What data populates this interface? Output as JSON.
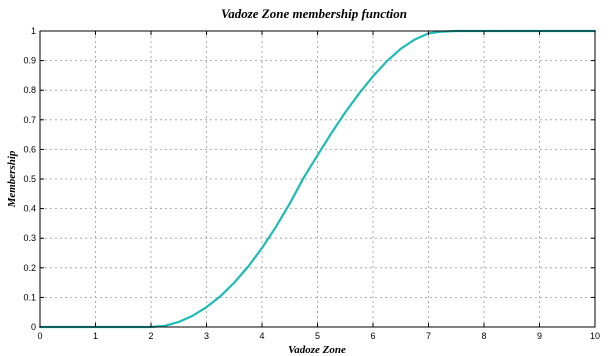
{
  "chart_data": {
    "type": "line",
    "title": "Vadoze Zone membership function",
    "xlabel": "Vadoze Zone",
    "ylabel": "Membership",
    "xlim": [
      0,
      10
    ],
    "ylim": [
      0,
      1
    ],
    "xticks": [
      "0",
      "1",
      "2",
      "3",
      "4",
      "5",
      "6",
      "7",
      "8",
      "9",
      "10"
    ],
    "yticks": [
      "0",
      "0.1",
      "0.2",
      "0.3",
      "0.4",
      "0.5",
      "0.6",
      "0.7",
      "0.8",
      "0.9",
      "1"
    ],
    "grid": true,
    "series": [
      {
        "color": "#1fbcb4",
        "x": [
          0,
          1,
          2,
          2.25,
          2.5,
          2.75,
          3,
          3.25,
          3.5,
          3.75,
          4,
          4.25,
          4.5,
          4.75,
          5,
          5.25,
          5.5,
          5.75,
          6,
          6.25,
          6.5,
          6.75,
          7,
          7.25,
          7.5,
          7.75,
          8,
          9,
          10
        ],
        "y": [
          0,
          0,
          0,
          0.004,
          0.017,
          0.038,
          0.067,
          0.104,
          0.15,
          0.204,
          0.267,
          0.338,
          0.417,
          0.504,
          0.58,
          0.655,
          0.725,
          0.789,
          0.847,
          0.898,
          0.94,
          0.971,
          0.992,
          0.998,
          1.0,
          1.0,
          1.0,
          1.0,
          1.0
        ]
      }
    ]
  }
}
